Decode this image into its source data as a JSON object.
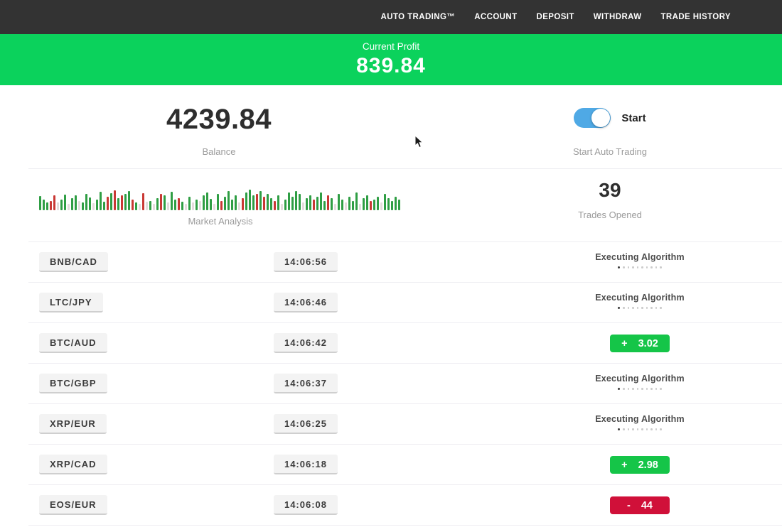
{
  "nav": {
    "items": [
      {
        "label": "AUTO TRADING™"
      },
      {
        "label": "ACCOUNT"
      },
      {
        "label": "DEPOSIT"
      },
      {
        "label": "WITHDRAW"
      },
      {
        "label": "TRADE HISTORY"
      }
    ]
  },
  "profit_banner": {
    "label": "Current Profit",
    "value": "839.84",
    "bg_color": "#0bd25c"
  },
  "account": {
    "balance_value": "4239.84",
    "balance_label": "Balance",
    "toggle_label": "Start",
    "toggle_caption": "Start Auto Trading",
    "toggle_on": true,
    "toggle_color": "#4fa9e5"
  },
  "market": {
    "label": "Market Analysis",
    "trades_opened_value": "39",
    "trades_opened_label": "Trades Opened",
    "bar_colors": {
      "g": "#2f9e44",
      "r": "#c93834",
      "l": "#e3dcdc"
    },
    "bars": [
      "g20",
      "g15",
      "g11",
      "r13",
      "r21",
      "l11",
      "g15",
      "g22",
      "l9",
      "g17",
      "g21",
      "l13",
      "g11",
      "g23",
      "g18",
      "l10",
      "g15",
      "g26",
      "g12",
      "r19",
      "g24",
      "r28",
      "g17",
      "r21",
      "g23",
      "g27",
      "r15",
      "g11",
      "l9",
      "r24",
      "l12",
      "g13",
      "l9",
      "g17",
      "r23",
      "g21",
      "l11",
      "g26",
      "g15",
      "r17",
      "g12",
      "l9",
      "g19",
      "l11",
      "g15",
      "l13",
      "g21",
      "g25",
      "g16",
      "l9",
      "g23",
      "r13",
      "g19",
      "g27",
      "g15",
      "g21",
      "l11",
      "r17",
      "g25",
      "g29",
      "g21",
      "r23",
      "g27",
      "r19",
      "g23",
      "g17",
      "r13",
      "g21",
      "l9",
      "g15",
      "g25",
      "g19",
      "g27",
      "g23",
      "l11",
      "g17",
      "g21",
      "r15",
      "g19",
      "g25",
      "g13",
      "r21",
      "g17",
      "l9",
      "g23",
      "g15",
      "l11",
      "g19",
      "g13",
      "g25",
      "l9",
      "g17",
      "g21",
      "r13",
      "g15",
      "g19",
      "l11",
      "g23",
      "g17",
      "g13",
      "g19",
      "g15"
    ]
  },
  "trades": {
    "executing_label": "Executing Algorithm",
    "executing_dots": 10,
    "profit_color": "#15c548",
    "loss_color": "#d01039",
    "rows": [
      {
        "pair": "BNB/CAD",
        "time": "14:06:56",
        "status": "executing"
      },
      {
        "pair": "LTC/JPY",
        "time": "14:06:46",
        "status": "executing"
      },
      {
        "pair": "BTC/AUD",
        "time": "14:06:42",
        "status": "win",
        "sign": "+",
        "value": "3.02"
      },
      {
        "pair": "BTC/GBP",
        "time": "14:06:37",
        "status": "executing"
      },
      {
        "pair": "XRP/EUR",
        "time": "14:06:25",
        "status": "executing"
      },
      {
        "pair": "XRP/CAD",
        "time": "14:06:18",
        "status": "win",
        "sign": "+",
        "value": "2.98"
      },
      {
        "pair": "EOS/EUR",
        "time": "14:06:08",
        "status": "loss",
        "sign": "-",
        "value": "44"
      }
    ]
  }
}
